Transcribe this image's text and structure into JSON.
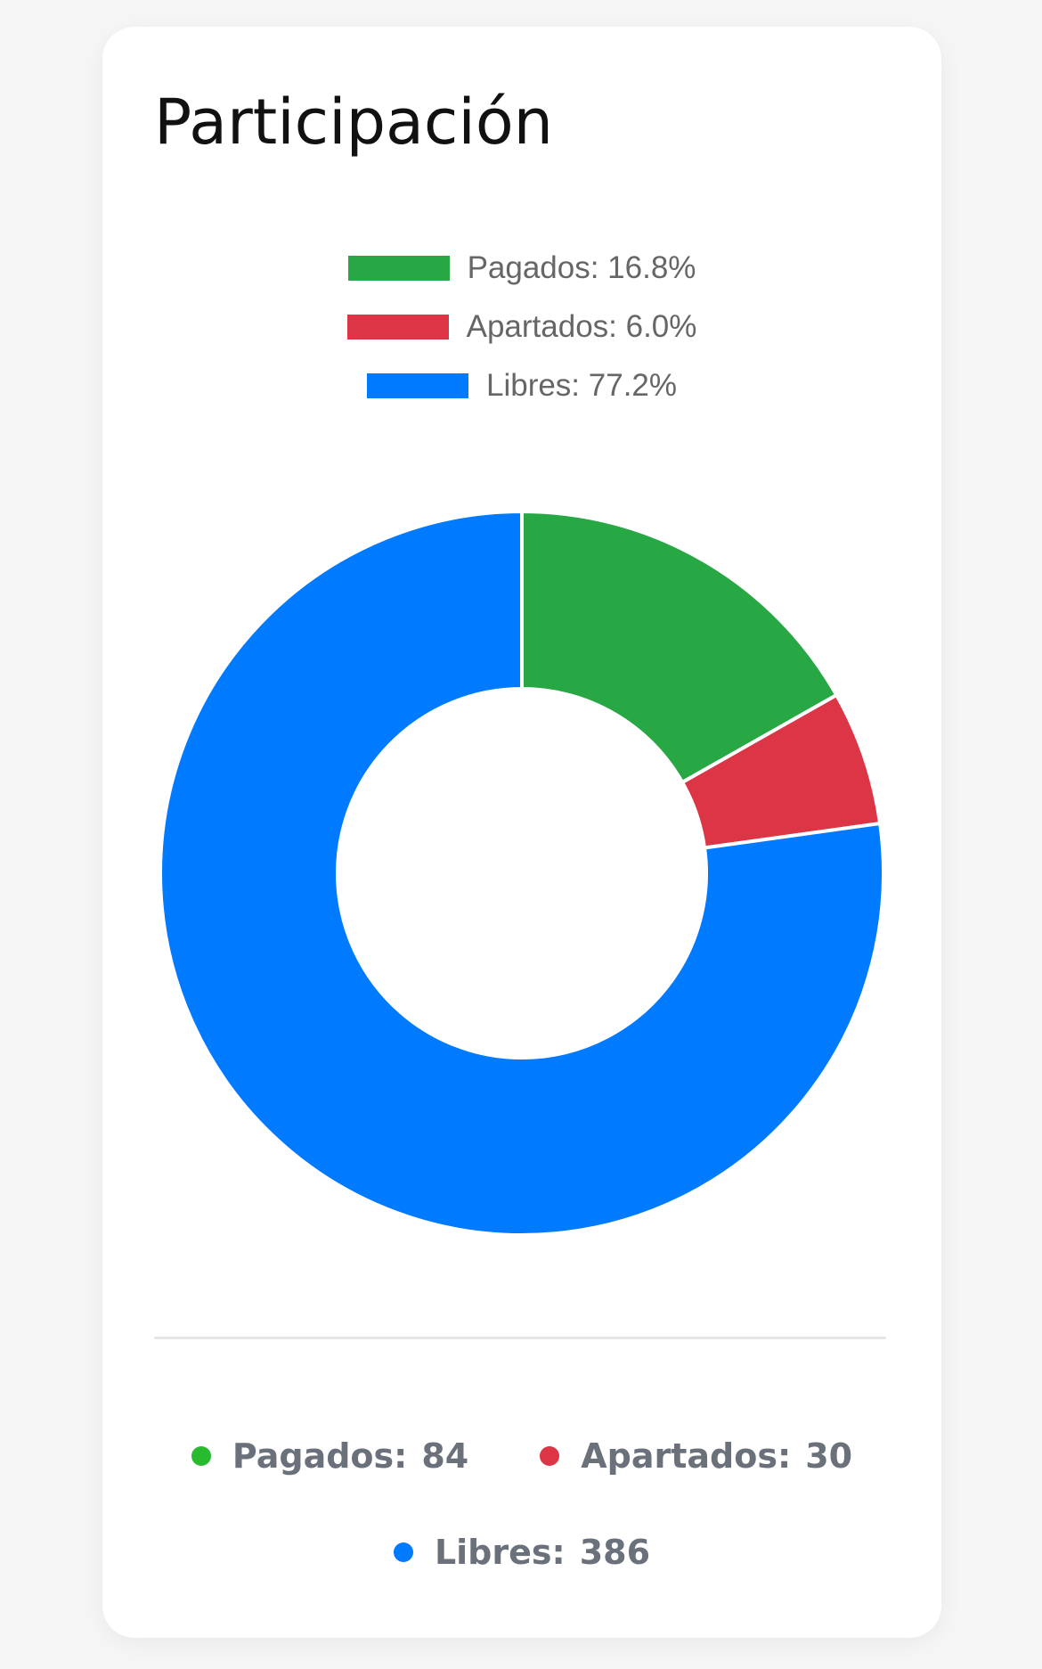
{
  "card": {
    "title": "Participación"
  },
  "colors": {
    "pagados": "#28a745",
    "apartados": "#dc3545",
    "libres": "#007bff"
  },
  "legend": [
    {
      "label": "Pagados: 16.8%",
      "color": "#28a745"
    },
    {
      "label": "Apartados: 6.0%",
      "color": "#dc3545"
    },
    {
      "label": "Libres: 77.2%",
      "color": "#007bff"
    }
  ],
  "chart_data": {
    "type": "pie",
    "style": "doughnut",
    "categories": [
      "Pagados",
      "Apartados",
      "Libres"
    ],
    "values": [
      84,
      30,
      386
    ],
    "percentages": [
      16.8,
      6.0,
      77.2
    ],
    "colors": [
      "#28a745",
      "#dc3545",
      "#007bff"
    ],
    "legend_position": "top"
  },
  "stats": {
    "pagados": {
      "label": "Pagados:",
      "value": "84"
    },
    "apartados": {
      "label": "Apartados:",
      "value": "30"
    },
    "libres": {
      "label": "Libres:",
      "value": "386"
    }
  }
}
